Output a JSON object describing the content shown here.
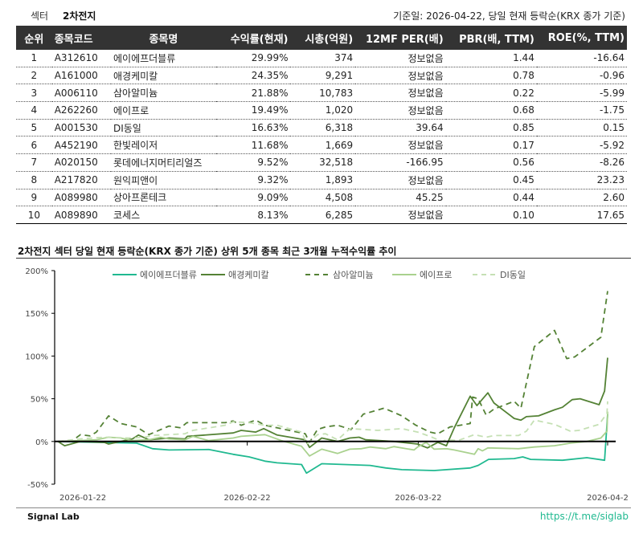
{
  "header": {
    "sector_label": "섹터",
    "sector_value": "2차전지",
    "basis": "기준일: 2026-04-22, 당일 현재 등락순(KRX 종가 기준)"
  },
  "table": {
    "columns": [
      "순위",
      "종목코드",
      "종목명",
      "수익률(현재)",
      "시총(억원)",
      "12MF PER(배)",
      "PBR(배, TTM)",
      "ROE(%, TTM)"
    ],
    "rows": [
      [
        "1",
        "A312610",
        "에이에프더블류",
        "29.99%",
        "374",
        "정보없음",
        "1.44",
        "-16.64"
      ],
      [
        "2",
        "A161000",
        "애경케미칼",
        "24.35%",
        "9,291",
        "정보없음",
        "0.78",
        "-0.96"
      ],
      [
        "3",
        "A006110",
        "삼아알미늄",
        "21.88%",
        "10,783",
        "정보없음",
        "0.22",
        "-5.99"
      ],
      [
        "4",
        "A262260",
        "에이프로",
        "19.49%",
        "1,020",
        "정보없음",
        "0.68",
        "-1.75"
      ],
      [
        "5",
        "A001530",
        "DI동일",
        "16.63%",
        "6,318",
        "39.64",
        "0.85",
        "0.15"
      ],
      [
        "6",
        "A452190",
        "한빛레이저",
        "11.68%",
        "1,669",
        "정보없음",
        "0.17",
        "-5.92"
      ],
      [
        "7",
        "A020150",
        "롯데에너지머티리얼즈",
        "9.52%",
        "32,518",
        "-166.95",
        "0.56",
        "-8.26"
      ],
      [
        "8",
        "A217820",
        "원익피앤이",
        "9.32%",
        "1,893",
        "정보없음",
        "0.45",
        "23.23"
      ],
      [
        "9",
        "A089980",
        "상아프론테크",
        "9.09%",
        "4,508",
        "45.25",
        "0.44",
        "2.60"
      ],
      [
        "10",
        "A089890",
        "코세스",
        "8.13%",
        "6,285",
        "정보없음",
        "0.10",
        "17.65"
      ]
    ]
  },
  "chart_data": {
    "type": "line",
    "title": "2차전지 섹터 당일 현재 등락순(KRX 종가 기준) 상위 5개 종목 최근 3개월 누적수익률 추이",
    "xlabel": "",
    "ylabel": "",
    "x_unit": "days since 2026-01-22",
    "xlim": [
      0,
      90
    ],
    "ylim": [
      -50,
      200
    ],
    "yticks": [
      -50,
      0,
      50,
      100,
      150,
      200
    ],
    "ytick_labels": [
      "-50%",
      "0%",
      "50%",
      "100%",
      "150%",
      "200%"
    ],
    "xticks": [
      0,
      31,
      59,
      90
    ],
    "xtick_labels": [
      "2026-01-22",
      "2026-02-22",
      "2026-03-22",
      "2026-04-2"
    ],
    "legend_position": "top",
    "series": [
      {
        "name": "에이에프더블류",
        "color": "#20b990",
        "dash": false,
        "points": [
          [
            0,
            0
          ],
          [
            12.9,
            -2
          ],
          [
            15.5,
            -8.5
          ],
          [
            18.2,
            -10
          ],
          [
            24.7,
            -9.4
          ],
          [
            28.7,
            -15
          ],
          [
            31.3,
            -18
          ],
          [
            33.9,
            -23
          ],
          [
            35.9,
            -25
          ],
          [
            39.9,
            -27
          ],
          [
            40.7,
            -37
          ],
          [
            43.2,
            -26
          ],
          [
            51.1,
            -28
          ],
          [
            53.7,
            -31
          ],
          [
            56.3,
            -33
          ],
          [
            61.6,
            -34
          ],
          [
            67.5,
            -31
          ],
          [
            68.8,
            -28
          ],
          [
            70.5,
            -21
          ],
          [
            74.7,
            -20
          ],
          [
            76.1,
            -18
          ],
          [
            77.4,
            -21
          ],
          [
            82.6,
            -22
          ],
          [
            86.6,
            -19
          ],
          [
            89.5,
            -22
          ],
          [
            90,
            32
          ]
        ]
      },
      {
        "name": "애경케미칼",
        "color": "#548235",
        "dash": false,
        "points": [
          [
            0,
            0
          ],
          [
            1.1,
            -5
          ],
          [
            3.7,
            0
          ],
          [
            7.6,
            -1
          ],
          [
            8.3,
            -3
          ],
          [
            12.2,
            3
          ],
          [
            13.2,
            7.5
          ],
          [
            14.9,
            2
          ],
          [
            18.2,
            4
          ],
          [
            20.8,
            3
          ],
          [
            21.2,
            6
          ],
          [
            28.7,
            10
          ],
          [
            30,
            13
          ],
          [
            32.4,
            11
          ],
          [
            33.7,
            15
          ],
          [
            35.9,
            7.5
          ],
          [
            40.5,
            2
          ],
          [
            41.2,
            -7
          ],
          [
            43.2,
            4
          ],
          [
            45.8,
            0
          ],
          [
            47.8,
            4
          ],
          [
            49.3,
            5
          ],
          [
            50.4,
            2
          ],
          [
            55,
            0
          ],
          [
            58.9,
            -3
          ],
          [
            60.5,
            -7.5
          ],
          [
            62.2,
            -1
          ],
          [
            63.6,
            -5
          ],
          [
            64.9,
            16
          ],
          [
            67.5,
            53
          ],
          [
            68.6,
            42
          ],
          [
            70.4,
            57
          ],
          [
            71.4,
            45
          ],
          [
            74.7,
            27
          ],
          [
            75.8,
            25
          ],
          [
            76.7,
            29
          ],
          [
            78.7,
            30
          ],
          [
            81.3,
            37
          ],
          [
            82.6,
            40
          ],
          [
            84.2,
            49
          ],
          [
            85.5,
            50
          ],
          [
            88.6,
            43
          ],
          [
            89.5,
            59
          ],
          [
            90,
            98
          ]
        ]
      },
      {
        "name": "삼아알미늄",
        "color": "#548235",
        "dash": true,
        "points": [
          [
            0,
            0
          ],
          [
            2.4,
            1
          ],
          [
            3.7,
            8
          ],
          [
            5.3,
            6.5
          ],
          [
            6.3,
            11
          ],
          [
            8.3,
            30
          ],
          [
            10.3,
            21
          ],
          [
            12.9,
            17
          ],
          [
            14.9,
            8
          ],
          [
            18.2,
            18
          ],
          [
            20.1,
            16
          ],
          [
            21.1,
            22
          ],
          [
            27.4,
            22
          ],
          [
            28.7,
            24
          ],
          [
            30,
            19
          ],
          [
            32.4,
            25
          ],
          [
            33.9,
            19
          ],
          [
            35.9,
            16
          ],
          [
            40.5,
            9
          ],
          [
            41.2,
            -1
          ],
          [
            42.5,
            14
          ],
          [
            43.8,
            17
          ],
          [
            45.8,
            19
          ],
          [
            48,
            14
          ],
          [
            50,
            32
          ],
          [
            53.4,
            39
          ],
          [
            56.3,
            30
          ],
          [
            58.6,
            19
          ],
          [
            60.9,
            11
          ],
          [
            62.2,
            9
          ],
          [
            64.2,
            17
          ],
          [
            67.5,
            21
          ],
          [
            67.9,
            52
          ],
          [
            68.8,
            50
          ],
          [
            70.1,
            31
          ],
          [
            71.4,
            38
          ],
          [
            74.7,
            47
          ],
          [
            75.8,
            39
          ],
          [
            78,
            111
          ],
          [
            81.3,
            130
          ],
          [
            83.3,
            97
          ],
          [
            84.6,
            99
          ],
          [
            88.9,
            122
          ],
          [
            90,
            176
          ]
        ]
      },
      {
        "name": "에이프로",
        "color": "#a9d18e",
        "dash": false,
        "points": [
          [
            0,
            0
          ],
          [
            3.7,
            1
          ],
          [
            6.3,
            2
          ],
          [
            8.3,
            5
          ],
          [
            10.3,
            4
          ],
          [
            12.2,
            1
          ],
          [
            14.9,
            2
          ],
          [
            16.8,
            5
          ],
          [
            18.2,
            3
          ],
          [
            20.8,
            2
          ],
          [
            22.1,
            6
          ],
          [
            24.7,
            1
          ],
          [
            28.7,
            4
          ],
          [
            30,
            6
          ],
          [
            33.9,
            8
          ],
          [
            36.6,
            1
          ],
          [
            39.9,
            -5.6
          ],
          [
            41.2,
            -17
          ],
          [
            43.2,
            -9
          ],
          [
            45.8,
            -14
          ],
          [
            47.8,
            -9
          ],
          [
            49.7,
            -8.5
          ],
          [
            51.1,
            -6.5
          ],
          [
            53.7,
            -8.5
          ],
          [
            55,
            -6
          ],
          [
            58.3,
            -10
          ],
          [
            58.9,
            -6.5
          ],
          [
            60.3,
            -1
          ],
          [
            61.6,
            -9
          ],
          [
            63.6,
            -8.5
          ],
          [
            64.9,
            -10
          ],
          [
            68.2,
            -15
          ],
          [
            68.8,
            -8.5
          ],
          [
            69.5,
            -11
          ],
          [
            70.4,
            -7.5
          ],
          [
            75.4,
            -8.5
          ],
          [
            78,
            -6.5
          ],
          [
            81.3,
            -5
          ],
          [
            83.9,
            -2
          ],
          [
            86.6,
            0
          ],
          [
            88.9,
            4
          ],
          [
            89.9,
            12
          ],
          [
            90,
            35
          ]
        ]
      },
      {
        "name": "DI동일",
        "color": "#c5e0b4",
        "dash": true,
        "points": [
          [
            0,
            0
          ],
          [
            3.7,
            3
          ],
          [
            7.6,
            5
          ],
          [
            11.6,
            4
          ],
          [
            14.2,
            5
          ],
          [
            15.5,
            7
          ],
          [
            20.8,
            9
          ],
          [
            22.1,
            13
          ],
          [
            27.4,
            19
          ],
          [
            28.7,
            23
          ],
          [
            31.3,
            22
          ],
          [
            33.9,
            19
          ],
          [
            35.9,
            19
          ],
          [
            39.9,
            11
          ],
          [
            40.8,
            -3
          ],
          [
            42.5,
            8
          ],
          [
            43.8,
            9
          ],
          [
            45.8,
            2
          ],
          [
            47.8,
            15
          ],
          [
            52.4,
            13
          ],
          [
            56.3,
            15
          ],
          [
            58.9,
            11
          ],
          [
            60.9,
            6
          ],
          [
            62.9,
            0
          ],
          [
            63.6,
            2
          ],
          [
            65.5,
            1
          ],
          [
            68.2,
            8
          ],
          [
            70.1,
            5
          ],
          [
            71.4,
            7
          ],
          [
            75.4,
            7
          ],
          [
            76.7,
            12
          ],
          [
            78,
            25
          ],
          [
            81.3,
            20
          ],
          [
            83.9,
            12
          ],
          [
            85.3,
            13
          ],
          [
            88.6,
            20
          ],
          [
            89.9,
            33
          ],
          [
            90,
            47
          ]
        ]
      }
    ]
  },
  "footer": {
    "brand": "Signal Lab",
    "link": "https://t.me/siglab"
  }
}
